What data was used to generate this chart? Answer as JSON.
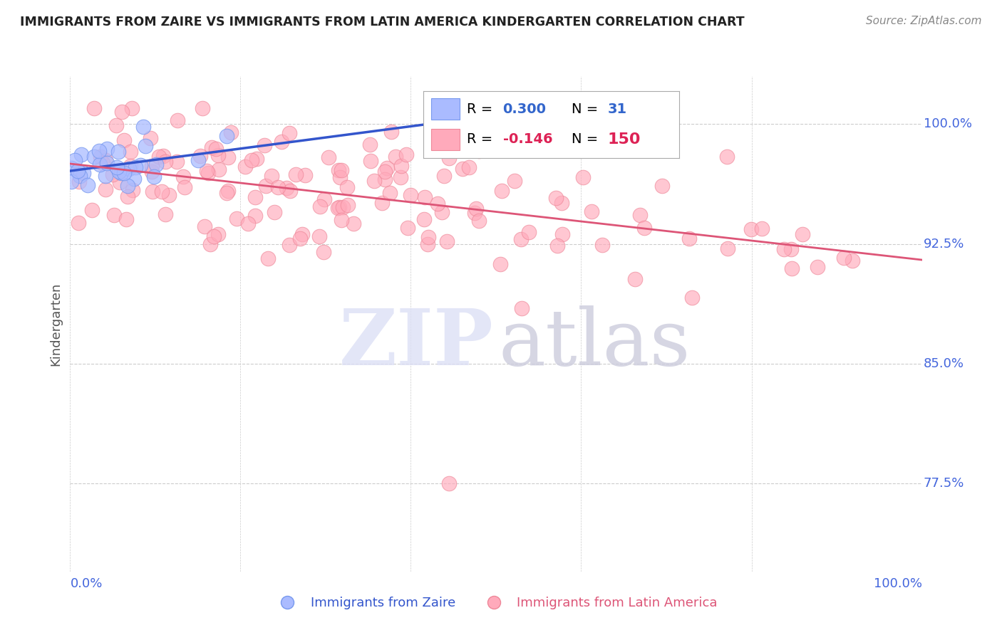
{
  "title": "IMMIGRANTS FROM ZAIRE VS IMMIGRANTS FROM LATIN AMERICA KINDERGARTEN CORRELATION CHART",
  "source": "Source: ZipAtlas.com",
  "ylabel": "Kindergarten",
  "y_tick_labels": [
    "77.5%",
    "85.0%",
    "92.5%",
    "100.0%"
  ],
  "y_tick_values": [
    0.775,
    0.85,
    0.925,
    1.0
  ],
  "xlim": [
    0.0,
    1.0
  ],
  "ylim": [
    0.72,
    1.03
  ],
  "background_color": "#ffffff",
  "grid_color": "#cccccc",
  "zaire_color": "#aabbff",
  "latin_color": "#ffaabb",
  "zaire_edge_color": "#7799ee",
  "latin_edge_color": "#ee8899",
  "zaire_line_color": "#3355cc",
  "latin_line_color": "#dd5577",
  "title_color": "#222222",
  "source_color": "#888888",
  "axis_label_color": "#4466dd",
  "watermark_zip_color": "#dde0f5",
  "watermark_atlas_color": "#ccccdd",
  "legend_R_color_zaire": "#3366cc",
  "legend_R_color_latin": "#dd2255",
  "legend_N_color_zaire": "#3366cc",
  "legend_N_color_latin": "#dd2255"
}
